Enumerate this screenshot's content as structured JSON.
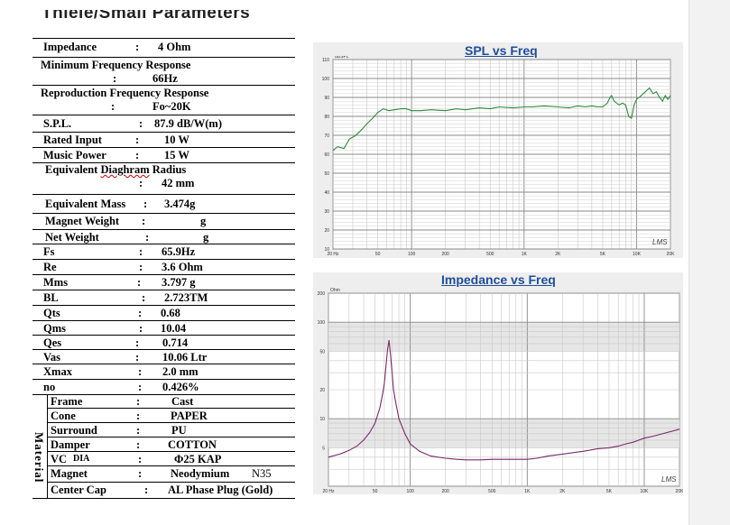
{
  "heading": "Thiele/Small Parameters",
  "params": [
    {
      "label": "Impedance",
      "value": "4 Ohm"
    },
    {
      "label": "Minimum Frequency Response",
      "value": "66Hz"
    },
    {
      "label": "Reproduction Frequency Response",
      "value": "Fo~20K"
    },
    {
      "label": "S.P.L.",
      "value": "87.9 dB/W(m)"
    },
    {
      "label": "Rated Input",
      "value": "10 W"
    },
    {
      "label": "Music Power",
      "value": "15 W"
    },
    {
      "label": "Equivalent Diaghram Radius",
      "value": "42 mm"
    },
    {
      "label": "Equivalent Mass",
      "value": "3.474g"
    },
    {
      "label": "Magnet Weight",
      "value": "g"
    },
    {
      "label": "Net Weight",
      "value": "g"
    },
    {
      "label": "Fs",
      "value": "65.9Hz"
    },
    {
      "label": "Re",
      "value": "3.6 Ohm"
    },
    {
      "label": "Mms",
      "value": "3.797 g"
    },
    {
      "label": "BL",
      "value": "2.723TM"
    },
    {
      "label": "Qts",
      "value": "0.68"
    },
    {
      "label": "Qms",
      "value": "10.04"
    },
    {
      "label": "Qes",
      "value": "0.714"
    },
    {
      "label": "Vas",
      "value": "10.06 Ltr"
    },
    {
      "label": "Xmax",
      "value": "2.0 mm"
    },
    {
      "label": "no",
      "value": "0.426%"
    }
  ],
  "material_label": "Material",
  "materials": [
    {
      "label": "Frame",
      "value": "Cast"
    },
    {
      "label": "Cone",
      "value": "PAPER"
    },
    {
      "label": "Surround",
      "value": "PU"
    },
    {
      "label": "Damper",
      "value": "COTTON"
    },
    {
      "label": "VC",
      "label_sub": "DIA",
      "value": "Φ25  KAP"
    },
    {
      "label": "Magnet",
      "value": "Neodymium",
      "extra": "N35"
    },
    {
      "label": "Center Cap",
      "value": "AL Phase Plug (Gold)"
    }
  ],
  "colon": ":",
  "chart_data": [
    {
      "type": "line",
      "title": "SPL vs Freq",
      "ylabel": "dBSPL",
      "watermark": "LMS",
      "x_scale": "log",
      "xlim": [
        20,
        20000
      ],
      "ylim": [
        10,
        110
      ],
      "x_ticks": [
        20,
        50,
        100,
        200,
        500,
        1000,
        2000,
        5000,
        10000,
        20000
      ],
      "x_tick_labels": [
        "20 Hz",
        "50",
        "100",
        "200",
        "500",
        "1K",
        "2K",
        "5K",
        "10K",
        "20K"
      ],
      "y_ticks": [
        110,
        100,
        90,
        80,
        70,
        60,
        50,
        40,
        30,
        20,
        10
      ],
      "y_tick_labels": [
        "110",
        "100",
        "90",
        "80",
        "70",
        "60",
        "50",
        "40",
        "30",
        "20",
        "10"
      ],
      "grid": true,
      "color": "#2e8b3a",
      "series": [
        {
          "x": [
            20,
            22,
            25,
            28,
            32,
            36,
            40,
            45,
            50,
            56,
            63,
            70,
            80,
            90,
            100,
            120,
            150,
            200,
            250,
            300,
            400,
            500,
            600,
            800,
            1000,
            1200,
            1500,
            2000,
            2500,
            3000,
            3500,
            4000,
            4500,
            5000,
            5500,
            5800,
            6000,
            6300,
            7000,
            7500,
            8000,
            8500,
            9000,
            9500,
            10000,
            10500,
            11000,
            12000,
            13000,
            14000,
            15000,
            16000,
            17000,
            18000,
            19000,
            20000
          ],
          "y": [
            62,
            64,
            63,
            68,
            70,
            73,
            76,
            79,
            82,
            84,
            83,
            83.5,
            84,
            84,
            83,
            83,
            83.5,
            83,
            84,
            83.5,
            84.5,
            84,
            85,
            84.5,
            85,
            85,
            85.5,
            85,
            84.5,
            85.5,
            85,
            85.5,
            85,
            85,
            87,
            90,
            91,
            88,
            86,
            87,
            86,
            80,
            79,
            86,
            89,
            90,
            91,
            93,
            95,
            92,
            93,
            90,
            88,
            91,
            89,
            91
          ]
        }
      ]
    },
    {
      "type": "line",
      "title": "Impedance vs Freq",
      "ylabel": "Ohm",
      "watermark": "LMS",
      "x_scale": "log",
      "y_scale": "log",
      "xlim": [
        20,
        20000
      ],
      "ylim": [
        2,
        200
      ],
      "x_ticks": [
        20,
        50,
        100,
        200,
        500,
        1000,
        2000,
        5000,
        10000,
        20000
      ],
      "x_tick_labels": [
        "20 Hz",
        "50",
        "100",
        "200",
        "500",
        "1K",
        "2K",
        "5K",
        "10K",
        "20K"
      ],
      "y_ticks": [
        200,
        100,
        50,
        20,
        10,
        5
      ],
      "y_tick_labels": [
        "200",
        "100",
        "50",
        "20",
        "10",
        "5"
      ],
      "grid": true,
      "color": "#7a2a6a",
      "series": [
        {
          "x": [
            20,
            25,
            30,
            35,
            40,
            45,
            50,
            55,
            58,
            60,
            62,
            64,
            65.9,
            68,
            70,
            72,
            75,
            80,
            90,
            100,
            120,
            150,
            200,
            250,
            300,
            400,
            500,
            700,
            1000,
            1200,
            1500,
            2000,
            3000,
            4000,
            5000,
            6000,
            7000,
            8000,
            9000,
            10000,
            12000,
            15000,
            20000
          ],
          "y": [
            4.0,
            4.3,
            4.7,
            5.2,
            6.0,
            7.2,
            9.0,
            13,
            18,
            23,
            35,
            52,
            65,
            45,
            30,
            20,
            15,
            10,
            7,
            5.5,
            4.6,
            4.1,
            3.9,
            3.8,
            3.75,
            3.75,
            3.8,
            3.8,
            3.8,
            3.9,
            4.1,
            4.3,
            4.6,
            4.9,
            5.0,
            5.2,
            5.5,
            5.7,
            6.0,
            6.3,
            6.6,
            7.1,
            7.8
          ]
        }
      ]
    }
  ]
}
